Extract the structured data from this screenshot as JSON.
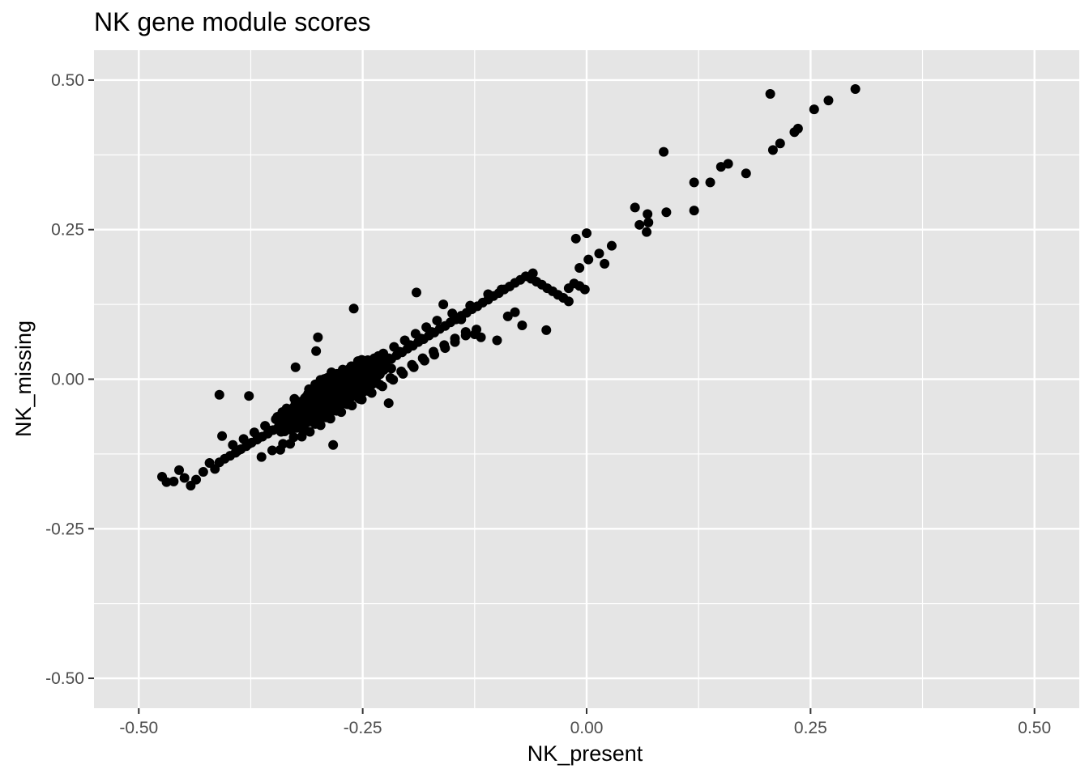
{
  "chart_data": {
    "type": "scatter",
    "title": "NK gene module scores",
    "xlabel": "NK_present",
    "ylabel": "NK_missing",
    "xlim": [
      -0.55,
      0.55
    ],
    "ylim": [
      -0.55,
      0.55
    ],
    "xticks": [
      -0.5,
      -0.25,
      0.0,
      0.25,
      0.5
    ],
    "yticks": [
      -0.5,
      -0.25,
      0.0,
      0.25,
      0.5
    ],
    "xtick_labels": [
      "-0.50",
      "-0.25",
      "0.00",
      "0.25",
      "0.50"
    ],
    "ytick_labels": [
      "-0.50",
      "-0.25",
      "0.00",
      "0.25",
      "0.50"
    ],
    "grid": true,
    "panel_background": "#e5e5e5",
    "grid_color": "#ffffff",
    "point_color": "#000000",
    "series": [
      {
        "x": [
          -0.474,
          -0.469,
          -0.461,
          -0.455,
          -0.449,
          -0.442,
          -0.436,
          -0.428,
          -0.421,
          -0.415,
          -0.41,
          -0.404,
          -0.398,
          -0.392,
          -0.386,
          -0.38,
          -0.374,
          -0.368,
          -0.362,
          -0.356,
          -0.35,
          -0.344,
          -0.338,
          -0.332,
          -0.326,
          -0.32,
          -0.314,
          -0.308,
          -0.302,
          -0.296,
          -0.29,
          -0.284,
          -0.278,
          -0.272,
          -0.266,
          -0.26,
          -0.254,
          -0.248,
          -0.242,
          -0.236,
          -0.23,
          -0.224,
          -0.218,
          -0.212,
          -0.206,
          -0.2,
          -0.194,
          -0.188,
          -0.182,
          -0.176,
          -0.17,
          -0.164,
          -0.158,
          -0.152,
          -0.146,
          -0.14,
          -0.134,
          -0.128,
          -0.122,
          -0.116,
          -0.11,
          -0.104,
          -0.098,
          -0.092,
          -0.086,
          -0.08,
          -0.074,
          -0.068,
          -0.062,
          -0.056,
          -0.05,
          -0.044,
          -0.038,
          -0.032,
          -0.026,
          -0.02,
          -0.014,
          -0.008,
          -0.002,
          -0.395,
          -0.383,
          -0.371,
          -0.359,
          -0.347,
          -0.335,
          -0.323,
          -0.311,
          -0.299,
          -0.287,
          -0.275,
          -0.263,
          -0.251,
          -0.239,
          -0.227,
          -0.215,
          -0.203,
          -0.191,
          -0.179,
          -0.167,
          -0.407,
          -0.389,
          -0.377,
          -0.365,
          -0.353,
          -0.341,
          -0.329,
          -0.317,
          -0.305,
          -0.293,
          -0.281,
          -0.269,
          -0.257,
          -0.245,
          -0.233,
          -0.221,
          -0.209,
          -0.197,
          -0.185,
          -0.173,
          -0.342,
          -0.331,
          -0.318,
          -0.309,
          -0.297,
          -0.286,
          -0.274,
          -0.262,
          -0.251,
          -0.24,
          -0.228,
          -0.216,
          -0.205,
          -0.193,
          -0.181,
          -0.17,
          -0.158,
          -0.147,
          -0.135,
          -0.123,
          -0.363,
          -0.351,
          -0.339,
          -0.327,
          -0.315,
          -0.303,
          -0.291,
          -0.279,
          -0.267,
          -0.255,
          -0.243,
          -0.231,
          -0.219,
          -0.207,
          -0.195,
          -0.183,
          -0.171,
          -0.159,
          -0.147,
          -0.135,
          -0.41,
          -0.3,
          -0.19,
          -0.26,
          -0.325,
          -0.221,
          -0.283,
          -0.377,
          -0.302,
          -0.256,
          -0.012,
          -0.008,
          0.0,
          0.002,
          0.014,
          0.02,
          0.028,
          0.054,
          0.059,
          0.067,
          0.068,
          0.069,
          0.086,
          0.089,
          0.12,
          0.12,
          0.138,
          0.15,
          0.158,
          0.178,
          0.205,
          0.208,
          0.216,
          0.232,
          0.236,
          0.254,
          0.27,
          0.3,
          -0.045,
          -0.02,
          -0.06,
          -0.08,
          -0.095,
          -0.11,
          -0.13,
          -0.14,
          -0.15,
          -0.16,
          -0.072,
          -0.088,
          -0.1,
          -0.118,
          -0.125
        ],
        "y": [
          -0.163,
          -0.172,
          -0.171,
          -0.152,
          -0.165,
          -0.178,
          -0.168,
          -0.155,
          -0.14,
          -0.15,
          -0.139,
          -0.133,
          -0.128,
          -0.123,
          -0.117,
          -0.112,
          -0.106,
          -0.101,
          -0.096,
          -0.091,
          -0.085,
          -0.08,
          -0.075,
          -0.069,
          -0.064,
          -0.058,
          -0.053,
          -0.047,
          -0.042,
          -0.037,
          -0.031,
          -0.026,
          -0.02,
          -0.015,
          -0.009,
          -0.004,
          0.001,
          0.007,
          0.012,
          0.018,
          0.023,
          0.029,
          0.034,
          0.04,
          0.045,
          0.051,
          0.056,
          0.062,
          0.067,
          0.073,
          0.078,
          0.084,
          0.089,
          0.095,
          0.1,
          0.106,
          0.111,
          0.117,
          0.122,
          0.128,
          0.133,
          0.139,
          0.144,
          0.15,
          0.155,
          0.161,
          0.166,
          0.172,
          0.168,
          0.163,
          0.158,
          0.152,
          0.147,
          0.141,
          0.136,
          0.152,
          0.16,
          0.156,
          0.15,
          -0.11,
          -0.1,
          -0.089,
          -0.078,
          -0.067,
          -0.056,
          -0.045,
          -0.034,
          -0.023,
          -0.012,
          -0.001,
          0.01,
          0.021,
          0.032,
          0.043,
          0.054,
          0.065,
          0.076,
          0.087,
          0.098,
          -0.095,
          -0.119,
          -0.108,
          -0.097,
          -0.086,
          -0.075,
          -0.064,
          -0.053,
          -0.042,
          -0.031,
          -0.02,
          -0.009,
          0.002,
          0.013,
          0.024,
          0.035,
          0.046,
          0.057,
          0.068,
          0.079,
          -0.118,
          -0.108,
          -0.096,
          -0.088,
          -0.077,
          -0.066,
          -0.055,
          -0.044,
          -0.034,
          -0.023,
          -0.012,
          -0.001,
          0.009,
          0.02,
          0.031,
          0.041,
          0.052,
          0.062,
          0.073,
          0.083,
          -0.13,
          -0.119,
          -0.108,
          -0.097,
          -0.086,
          -0.075,
          -0.064,
          -0.053,
          -0.042,
          -0.031,
          -0.02,
          -0.009,
          0.002,
          0.013,
          0.024,
          0.035,
          0.046,
          0.057,
          0.068,
          0.079,
          -0.026,
          0.07,
          0.145,
          0.118,
          0.02,
          -0.04,
          -0.11,
          -0.028,
          0.047,
          -0.006,
          0.235,
          0.186,
          0.244,
          0.2,
          0.21,
          0.193,
          0.223,
          0.287,
          0.258,
          0.246,
          0.276,
          0.262,
          0.38,
          0.279,
          0.329,
          0.282,
          0.329,
          0.355,
          0.36,
          0.344,
          0.477,
          0.383,
          0.394,
          0.413,
          0.419,
          0.451,
          0.466,
          0.485,
          0.082,
          0.13,
          0.177,
          0.112,
          0.15,
          0.142,
          0.123,
          0.1,
          0.11,
          0.125,
          0.09,
          0.105,
          0.065,
          0.07,
          0.075
        ]
      }
    ]
  }
}
